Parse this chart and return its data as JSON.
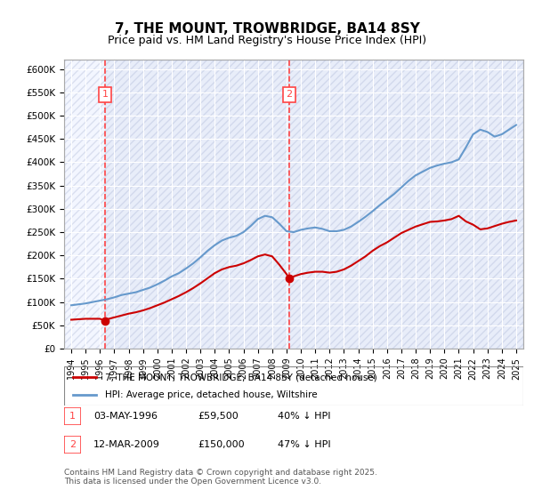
{
  "title": "7, THE MOUNT, TROWBRIDGE, BA14 8SY",
  "subtitle": "Price paid vs. HM Land Registry's House Price Index (HPI)",
  "title_fontsize": 11,
  "subtitle_fontsize": 9,
  "ylabel": "",
  "xlabel": "",
  "ylim": [
    0,
    620000
  ],
  "yticks": [
    0,
    50000,
    100000,
    150000,
    200000,
    250000,
    300000,
    350000,
    400000,
    450000,
    500000,
    550000,
    600000
  ],
  "ytick_labels": [
    "£0",
    "£50K",
    "£100K",
    "£150K",
    "£200K",
    "£250K",
    "£300K",
    "£350K",
    "£400K",
    "£450K",
    "£500K",
    "£550K",
    "£600K"
  ],
  "xlim_start": 1993.5,
  "xlim_end": 2025.5,
  "xticks": [
    1994,
    1995,
    1996,
    1997,
    1998,
    1999,
    2000,
    2001,
    2002,
    2003,
    2004,
    2005,
    2006,
    2007,
    2008,
    2009,
    2010,
    2011,
    2012,
    2013,
    2014,
    2015,
    2016,
    2017,
    2018,
    2019,
    2020,
    2021,
    2022,
    2023,
    2024,
    2025
  ],
  "bg_color": "#f0f4ff",
  "plot_bg_color": "#e8eeff",
  "hatch_color": "#c0c8e0",
  "red_line_color": "#cc0000",
  "blue_line_color": "#6699cc",
  "vline_color": "#ff4444",
  "sale1_x": 1996.35,
  "sale1_y": 59500,
  "sale1_label": "1",
  "sale2_x": 2009.2,
  "sale2_y": 150000,
  "sale2_label": "2",
  "legend_line1": "7, THE MOUNT, TROWBRIDGE, BA14 8SY (detached house)",
  "legend_line2": "HPI: Average price, detached house, Wiltshire",
  "table_row1": [
    "1",
    "03-MAY-1996",
    "£59,500",
    "40% ↓ HPI"
  ],
  "table_row2": [
    "2",
    "12-MAR-2009",
    "£150,000",
    "47% ↓ HPI"
  ],
  "footnote": "Contains HM Land Registry data © Crown copyright and database right 2025.\nThis data is licensed under the Open Government Licence v3.0.",
  "hpi_years": [
    1994,
    1994.5,
    1995,
    1995.5,
    1996,
    1996.5,
    1997,
    1997.5,
    1998,
    1998.5,
    1999,
    1999.5,
    2000,
    2000.5,
    2001,
    2001.5,
    2002,
    2002.5,
    2003,
    2003.5,
    2004,
    2004.5,
    2005,
    2005.5,
    2006,
    2006.5,
    2007,
    2007.5,
    2008,
    2008.5,
    2009,
    2009.5,
    2010,
    2010.5,
    2011,
    2011.5,
    2012,
    2012.5,
    2013,
    2013.5,
    2014,
    2014.5,
    2015,
    2015.5,
    2016,
    2016.5,
    2017,
    2017.5,
    2018,
    2018.5,
    2019,
    2019.5,
    2020,
    2020.5,
    2021,
    2021.5,
    2022,
    2022.5,
    2023,
    2023.5,
    2024,
    2024.5,
    2025
  ],
  "hpi_values": [
    93000,
    95000,
    97000,
    100000,
    103000,
    106000,
    110000,
    115000,
    118000,
    121000,
    126000,
    131000,
    138000,
    146000,
    155000,
    162000,
    172000,
    183000,
    196000,
    210000,
    222000,
    232000,
    238000,
    242000,
    250000,
    263000,
    278000,
    285000,
    282000,
    268000,
    252000,
    250000,
    255000,
    258000,
    260000,
    257000,
    252000,
    252000,
    255000,
    262000,
    272000,
    283000,
    295000,
    308000,
    320000,
    332000,
    346000,
    360000,
    372000,
    380000,
    388000,
    393000,
    397000,
    400000,
    406000,
    432000,
    460000,
    470000,
    465000,
    455000,
    460000,
    470000,
    480000
  ],
  "price_years": [
    1994,
    1994.5,
    1995,
    1995.5,
    1996,
    1996.35,
    1996.5,
    1997,
    1997.5,
    1998,
    1998.5,
    1999,
    1999.5,
    2000,
    2000.5,
    2001,
    2001.5,
    2002,
    2002.5,
    2003,
    2003.5,
    2004,
    2004.5,
    2005,
    2005.5,
    2006,
    2006.5,
    2007,
    2007.5,
    2008,
    2008.5,
    2009,
    2009.2,
    2009.5,
    2010,
    2010.5,
    2011,
    2011.5,
    2012,
    2012.5,
    2013,
    2013.5,
    2014,
    2014.5,
    2015,
    2015.5,
    2016,
    2016.5,
    2017,
    2017.5,
    2018,
    2018.5,
    2019,
    2019.5,
    2020,
    2020.5,
    2021,
    2021.5,
    2022,
    2022.5,
    2023,
    2023.5,
    2024,
    2024.5,
    2025
  ],
  "price_values": [
    62000,
    63000,
    64000,
    64000,
    64000,
    59500,
    63000,
    67000,
    71000,
    75000,
    78000,
    82000,
    87000,
    93000,
    99000,
    106000,
    113000,
    121000,
    130000,
    140000,
    151000,
    162000,
    170000,
    175000,
    178000,
    183000,
    190000,
    198000,
    202000,
    198000,
    180000,
    160000,
    150000,
    155000,
    160000,
    163000,
    165000,
    165000,
    163000,
    165000,
    170000,
    178000,
    188000,
    198000,
    210000,
    220000,
    228000,
    238000,
    248000,
    255000,
    262000,
    267000,
    272000,
    273000,
    275000,
    278000,
    285000,
    273000,
    266000,
    256000,
    258000,
    263000,
    268000,
    272000,
    275000
  ]
}
